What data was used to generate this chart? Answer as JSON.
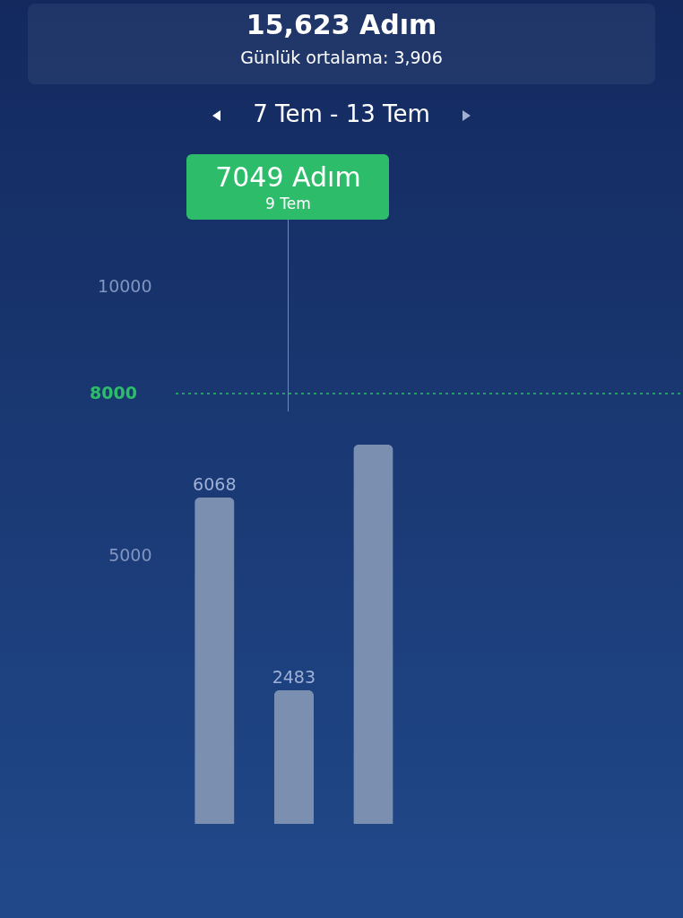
{
  "chart_data": {
    "type": "bar",
    "title": "15,623 Adım",
    "subtitle": "Günlük ortalama:  3,906",
    "annotations": [
      "7 Tem - 13 Tem",
      "7049 Adım",
      "9 Tem"
    ],
    "categories": [
      null,
      null,
      null,
      null,
      null,
      null,
      null
    ],
    "values": [
      6068,
      2483,
      7049,
      null,
      null,
      null,
      null
    ],
    "value_labels": [
      "6068",
      "2483",
      null,
      null,
      null,
      null,
      null
    ],
    "color": "#7b8fb0",
    "ylim": [
      0,
      10000
    ],
    "yticks": [
      5000,
      10000
    ],
    "tick_labels": "y",
    "ref_lines": [
      {
        "axis": "y",
        "value": 8000,
        "label": "8000",
        "color": "#2dbd6a",
        "line_style": "dotted"
      }
    ]
  }
}
